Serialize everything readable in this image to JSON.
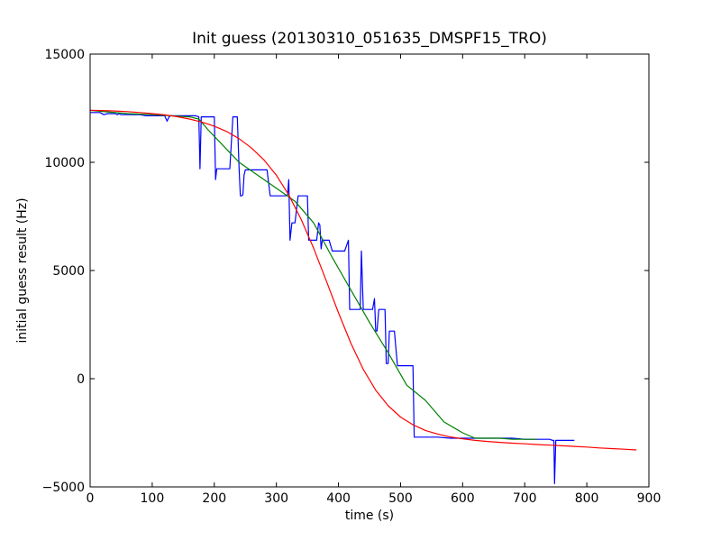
{
  "chart_data": {
    "type": "line",
    "title": "Init guess (20130310_051635_DMSPF15_TRO)",
    "xlabel": "time (s)",
    "ylabel": "initial guess result (Hz)",
    "xlim": [
      0,
      900
    ],
    "ylim": [
      -5000,
      15000
    ],
    "xticks": [
      0,
      100,
      200,
      300,
      400,
      500,
      600,
      700,
      800,
      900
    ],
    "yticks": [
      -5000,
      0,
      5000,
      10000,
      15000
    ],
    "xtick_labels": [
      "0",
      "100",
      "200",
      "300",
      "400",
      "500",
      "600",
      "700",
      "800",
      "900"
    ],
    "ytick_labels": [
      "−5000",
      "0",
      "5000",
      "10000",
      "15000"
    ],
    "grid": false,
    "series": [
      {
        "color": "#0000ff",
        "x": [
          0,
          8,
          16,
          22,
          28,
          35,
          40,
          44,
          46,
          50,
          60,
          70,
          80,
          90,
          100,
          110,
          120,
          124,
          127,
          130,
          140,
          150,
          160,
          170,
          175,
          177,
          179,
          181,
          190,
          200,
          202,
          204,
          206,
          208,
          215,
          225,
          230,
          233,
          237,
          240,
          242,
          244,
          246,
          248,
          250,
          255,
          265,
          275,
          285,
          290,
          300,
          310,
          315,
          318,
          320,
          322,
          325,
          330,
          335,
          340,
          350,
          352,
          355,
          360,
          365,
          368,
          370,
          372,
          374,
          376,
          378,
          385,
          390,
          395,
          400,
          410,
          416,
          418,
          420,
          422,
          425,
          430,
          435,
          437,
          440,
          442,
          445,
          450,
          455,
          458,
          460,
          462,
          465,
          470,
          475,
          477,
          480,
          482,
          485,
          490,
          495,
          497,
          500,
          502,
          505,
          510,
          515,
          520,
          522,
          525,
          530,
          540,
          550,
          560,
          580,
          590,
          600,
          620,
          640,
          660,
          680,
          700,
          720,
          730,
          740,
          745,
          747,
          748,
          750,
          752,
          760,
          770,
          780
        ],
        "y": [
          12300,
          12300,
          12300,
          12200,
          12250,
          12250,
          12250,
          12200,
          12250,
          12200,
          12200,
          12200,
          12200,
          12150,
          12150,
          12150,
          12150,
          11900,
          12100,
          12150,
          12150,
          12150,
          12150,
          12150,
          12100,
          9700,
          12100,
          12100,
          12100,
          12100,
          9200,
          9700,
          9700,
          9700,
          9700,
          9700,
          12100,
          12100,
          12100,
          9700,
          8450,
          8450,
          8500,
          9400,
          9650,
          9650,
          9650,
          9650,
          9650,
          8450,
          8450,
          8450,
          8450,
          8500,
          9200,
          6400,
          7200,
          7200,
          8450,
          8450,
          8450,
          6400,
          6400,
          6400,
          6400,
          7200,
          7100,
          6000,
          6400,
          6400,
          6400,
          6400,
          5900,
          5900,
          5900,
          5900,
          6400,
          3200,
          3200,
          3200,
          3200,
          3200,
          3200,
          5900,
          3200,
          3200,
          3200,
          3200,
          3200,
          3700,
          2200,
          2200,
          3200,
          3200,
          3200,
          700,
          700,
          2200,
          2200,
          2200,
          600,
          600,
          600,
          600,
          600,
          600,
          600,
          600,
          -2700,
          -2700,
          -2700,
          -2700,
          -2700,
          -2700,
          -2750,
          -2750,
          -2750,
          -2750,
          -2750,
          -2750,
          -2750,
          -2800,
          -2800,
          -2800,
          -2800,
          -2850,
          -2850,
          -4850,
          -2850,
          -2850,
          -2850,
          -2850,
          -2850
        ]
      },
      {
        "color": "#008000",
        "x": [
          0,
          20,
          60,
          100,
          130,
          160,
          175,
          190,
          210,
          240,
          270,
          300,
          330,
          360,
          390,
          420,
          450,
          480,
          510,
          540,
          570,
          600,
          620,
          640,
          660,
          680,
          700,
          720
        ],
        "y": [
          12400,
          12350,
          12250,
          12200,
          12150,
          12100,
          12000,
          11500,
          10900,
          10000,
          9400,
          8800,
          8200,
          7200,
          5600,
          4100,
          2600,
          1200,
          -300,
          -1000,
          -2000,
          -2500,
          -2750,
          -2750,
          -2750,
          -2800,
          -2800,
          -2800
        ]
      },
      {
        "color": "#ff0000",
        "x": [
          0,
          20,
          40,
          60,
          80,
          100,
          120,
          140,
          160,
          180,
          200,
          220,
          240,
          260,
          280,
          300,
          320,
          340,
          360,
          380,
          400,
          420,
          440,
          460,
          480,
          500,
          520,
          540,
          560,
          580,
          600,
          620,
          640,
          660,
          680,
          700,
          720,
          740,
          760,
          780,
          800,
          820,
          840,
          860,
          880
        ],
        "y": [
          12400,
          12390,
          12370,
          12340,
          12300,
          12250,
          12190,
          12110,
          12000,
          11860,
          11670,
          11420,
          11090,
          10660,
          10110,
          9400,
          8490,
          7360,
          6030,
          4550,
          3040,
          1640,
          430,
          -530,
          -1250,
          -1770,
          -2130,
          -2390,
          -2560,
          -2690,
          -2780,
          -2850,
          -2900,
          -2940,
          -2980,
          -3010,
          -3040,
          -3070,
          -3100,
          -3130,
          -3160,
          -3200,
          -3230,
          -3260,
          -3290
        ]
      }
    ]
  }
}
